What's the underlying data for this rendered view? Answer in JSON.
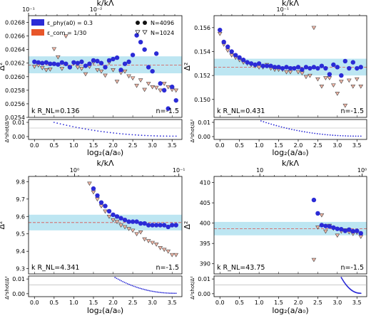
{
  "colors": {
    "phy": "#2b2bd6",
    "com": "#e8562a",
    "band": "#bde6f2",
    "dashed": "#d9534f",
    "shot": "#2b2bd6",
    "n1024_stroke": "#444444",
    "n1024_fill_red": "#f3b7a6"
  },
  "legend": {
    "phy_label": "ε_phy(a0) = 0.3",
    "com_label": "ε_com = 1/30",
    "n4096_label": "N=4096",
    "n1024_label": "N=1024"
  },
  "chart_data": [
    {
      "type": "scatter",
      "top_axis_label": "k/kΛ",
      "top_axis_scale": "log",
      "top_ticks": [
        "10⁻¹",
        "10⁻²"
      ],
      "ylabel": "Δ²",
      "xlabel": "log₂(a/a₀)",
      "xlim": [
        -0.15,
        3.75
      ],
      "ylim": [
        0.0254,
        0.0269
      ],
      "yticks": [
        "0.0254",
        "0.0256",
        "0.0258",
        "0.0260",
        "0.0262",
        "0.0264",
        "0.0266",
        "0.0268"
      ],
      "xticks": [
        "0.0",
        "0.5",
        "1.0",
        "1.5",
        "2.0",
        "2.5",
        "3.0",
        "3.5"
      ],
      "band": [
        0.02605,
        0.0263
      ],
      "mean": 0.02617,
      "annotation_left": "k R_NL=0.136",
      "annotation_right": "n=-1.5",
      "series": [
        {
          "name": "N=4096",
          "x": [
            0.0,
            0.1,
            0.2,
            0.3,
            0.4,
            0.5,
            0.6,
            0.7,
            0.8,
            0.9,
            1.0,
            1.1,
            1.2,
            1.3,
            1.4,
            1.5,
            1.6,
            1.7,
            1.8,
            1.9,
            2.0,
            2.1,
            2.2,
            2.3,
            2.4,
            2.5,
            2.6,
            2.7,
            2.8,
            2.9,
            3.0,
            3.1,
            3.2,
            3.3,
            3.4,
            3.5,
            3.6
          ],
          "y": [
            0.02622,
            0.02621,
            0.0262,
            0.02621,
            0.02619,
            0.02619,
            0.02618,
            0.02621,
            0.02619,
            0.02614,
            0.02621,
            0.0262,
            0.02622,
            0.02616,
            0.02619,
            0.02624,
            0.02623,
            0.0262,
            0.02614,
            0.02624,
            0.02626,
            0.02628,
            0.0261,
            0.02619,
            0.02622,
            0.02632,
            0.02661,
            0.02651,
            0.0264,
            0.02614,
            0.02608,
            0.02634,
            0.0259,
            0.0258,
            0.02553,
            0.02585,
            0.02565
          ]
        },
        {
          "name": "N=1024",
          "x": [
            0.0,
            0.1,
            0.2,
            0.3,
            0.4,
            0.5,
            0.6,
            0.7,
            0.8,
            0.9,
            1.0,
            1.1,
            1.2,
            1.3,
            1.4,
            1.5,
            1.6,
            1.7,
            1.8,
            1.9,
            2.0,
            2.1,
            2.2,
            2.3,
            2.4,
            2.5,
            2.6,
            2.7,
            2.8,
            2.9,
            3.0,
            3.1,
            3.2,
            3.3,
            3.4,
            3.5,
            3.6
          ],
          "y": [
            0.02615,
            0.02617,
            0.02613,
            0.0261,
            0.02611,
            0.02641,
            0.02629,
            0.02612,
            0.0266,
            0.02614,
            0.0262,
            0.02614,
            0.02612,
            0.02604,
            0.02615,
            0.02621,
            0.0261,
            0.02608,
            0.02602,
            0.02621,
            0.0261,
            0.02593,
            0.02606,
            0.02608,
            0.02601,
            0.02598,
            0.02587,
            0.02595,
            0.02581,
            0.0259,
            0.02585,
            0.02584,
            0.0258,
            0.0259,
            0.02585,
            0.02581,
            0.0258
          ]
        }
      ],
      "shot_ylim": [
        -0.002,
        0.012
      ],
      "shot_yticks": [
        "0.00",
        "0.01"
      ],
      "shot": {
        "x_start": 0.5,
        "x_end": 3.6,
        "y_start": 0.01,
        "y_end": 0.0003
      }
    },
    {
      "type": "scatter",
      "top_axis_label": "k/kΛ",
      "top_axis_scale": "log",
      "top_ticks": [
        "10⁻¹"
      ],
      "ylabel": "Δ²",
      "xlabel": "log₂(a/a₀)",
      "xlim": [
        -0.15,
        3.75
      ],
      "ylim": [
        0.1485,
        0.157
      ],
      "yticks": [
        "0.150",
        "0.152",
        "0.154",
        "0.156"
      ],
      "xticks": [
        "0.0",
        "0.5",
        "1.0",
        "1.5",
        "2.0",
        "2.5",
        "3.0",
        "3.5"
      ],
      "band": [
        0.152,
        0.1534
      ],
      "mean": 0.1527,
      "annotation_left": "k R_NL=0.431",
      "annotation_right": "n=-1.5",
      "series": [
        {
          "name": "N=4096",
          "x": [
            0.0,
            0.1,
            0.2,
            0.3,
            0.4,
            0.5,
            0.6,
            0.7,
            0.8,
            0.9,
            1.0,
            1.1,
            1.2,
            1.3,
            1.4,
            1.5,
            1.6,
            1.7,
            1.8,
            1.9,
            2.0,
            2.1,
            2.2,
            2.3,
            2.4,
            2.5,
            2.6,
            2.7,
            2.8,
            2.9,
            3.0,
            3.1,
            3.2,
            3.3,
            3.4,
            3.5,
            3.6
          ],
          "y": [
            0.1558,
            0.1548,
            0.1544,
            0.154,
            0.1537,
            0.1535,
            0.1533,
            0.1531,
            0.153,
            0.1529,
            0.153,
            0.1528,
            0.1528,
            0.1528,
            0.1527,
            0.1527,
            0.1526,
            0.1527,
            0.1526,
            0.1526,
            0.1527,
            0.1525,
            0.1527,
            0.1526,
            0.1527,
            0.1526,
            0.1528,
            0.1526,
            0.1521,
            0.1529,
            0.1527,
            0.152,
            0.1532,
            0.1526,
            0.1531,
            0.1526,
            0.1527
          ]
        },
        {
          "name": "N=1024",
          "x": [
            0.0,
            0.1,
            0.2,
            0.3,
            0.4,
            0.5,
            0.6,
            0.7,
            0.8,
            0.9,
            1.0,
            1.1,
            1.2,
            1.3,
            1.4,
            1.5,
            1.6,
            1.7,
            1.8,
            1.9,
            2.0,
            2.1,
            2.2,
            2.3,
            2.4,
            2.5,
            2.6,
            2.7,
            2.8,
            2.9,
            3.0,
            3.1,
            3.2,
            3.3,
            3.4,
            3.5,
            3.6
          ],
          "y": [
            0.1555,
            0.1546,
            0.1541,
            0.1537,
            0.1535,
            0.1533,
            0.1531,
            0.153,
            0.1529,
            0.1528,
            0.1527,
            0.1527,
            0.1529,
            0.1526,
            0.1525,
            0.1525,
            0.1525,
            0.1523,
            0.1523,
            0.1526,
            0.1523,
            0.1522,
            0.1519,
            0.152,
            0.156,
            0.1517,
            0.1511,
            0.1518,
            0.1518,
            0.1512,
            0.1505,
            0.1515,
            0.1495,
            0.1516,
            0.1511,
            0.1517,
            0.1511
          ]
        }
      ],
      "shot_ylim": [
        -0.002,
        0.012
      ],
      "shot_yticks": [
        "0.00",
        "0.01"
      ],
      "shot": {
        "x_start": 1.05,
        "x_end": 3.6,
        "y_start": 0.011,
        "y_end": 0.0003
      }
    },
    {
      "type": "scatter",
      "top_axis_label": "k/kΛ",
      "top_axis_scale": "log",
      "top_ticks": [
        "10⁰",
        "10⁻¹"
      ],
      "ylabel": "Δ²",
      "xlabel": "log₂(a/a₀)",
      "xlim": [
        -0.15,
        3.75
      ],
      "ylim": [
        9.27,
        9.83
      ],
      "yticks": [
        "9.3",
        "9.4",
        "9.5",
        "9.6",
        "9.7",
        "9.8"
      ],
      "xticks": [
        "0.0",
        "0.5",
        "1.0",
        "1.5",
        "2.0",
        "2.5",
        "3.0",
        "3.5"
      ],
      "band": [
        9.52,
        9.61
      ],
      "mean": 9.565,
      "annotation_left": "k R_NL=4.341",
      "annotation_right": "n=-1.5",
      "series": [
        {
          "name": "N=4096",
          "x": [
            1.5,
            1.6,
            1.7,
            1.8,
            1.9,
            2.0,
            2.1,
            2.2,
            2.3,
            2.4,
            2.5,
            2.6,
            2.7,
            2.8,
            2.9,
            3.0,
            3.1,
            3.2,
            3.3,
            3.4,
            3.5,
            3.6
          ],
          "y": [
            9.76,
            9.72,
            9.68,
            9.66,
            9.63,
            9.61,
            9.6,
            9.59,
            9.58,
            9.57,
            9.57,
            9.57,
            9.56,
            9.56,
            9.55,
            9.55,
            9.55,
            9.55,
            9.55,
            9.54,
            9.55,
            9.55
          ]
        },
        {
          "name": "N=1024",
          "x": [
            1.4,
            1.5,
            1.6,
            1.7,
            1.8,
            1.9,
            2.0,
            2.1,
            2.2,
            2.3,
            2.4,
            2.5,
            2.6,
            2.7,
            2.8,
            2.9,
            3.0,
            3.1,
            3.2,
            3.3,
            3.4,
            3.5,
            3.6
          ],
          "y": [
            9.79,
            9.74,
            9.7,
            9.66,
            9.63,
            9.6,
            9.58,
            9.57,
            9.55,
            9.54,
            9.53,
            9.52,
            9.5,
            9.51,
            9.47,
            9.46,
            9.45,
            9.44,
            9.42,
            9.41,
            9.4,
            9.38,
            9.38
          ]
        }
      ],
      "shot_ylim": [
        -0.002,
        0.012
      ],
      "shot_yticks": [
        "0.00",
        "0.01"
      ],
      "shot": {
        "x_start": 2.05,
        "x_end": 3.6,
        "y_start": 0.011,
        "y_end": 0.0003
      }
    },
    {
      "type": "scatter",
      "top_axis_label": "k/kΛ",
      "top_axis_scale": "log",
      "top_ticks": [
        "10",
        "10⁰"
      ],
      "ylabel": "Δ²",
      "xlabel": "log₂(a/a₀)",
      "xlim": [
        -0.15,
        3.75
      ],
      "ylim": [
        387.5,
        411.5
      ],
      "yticks": [
        "390",
        "395",
        "400",
        "405",
        "410"
      ],
      "xticks": [
        "0.0",
        "0.5",
        "1.0",
        "1.5",
        "2.0",
        "2.5",
        "3.0",
        "3.5"
      ],
      "band": [
        397.0,
        400.3
      ],
      "mean": 398.6,
      "annotation_left": "k R_NL=43.75",
      "annotation_right": "n=-1.5",
      "series": [
        {
          "name": "N=4096",
          "x": [
            2.4,
            2.5,
            2.6,
            2.7,
            2.8,
            2.9,
            3.0,
            3.1,
            3.2,
            3.3,
            3.4,
            3.5,
            3.6
          ],
          "y": [
            405.7,
            402.4,
            399.5,
            399.3,
            399.2,
            398.9,
            398.6,
            398.5,
            398.1,
            398.4,
            398.0,
            398.1,
            397.5
          ]
        },
        {
          "name": "N=1024",
          "x": [
            2.4,
            2.5,
            2.6,
            2.7,
            2.8,
            2.9,
            3.0,
            3.1,
            3.2,
            3.3,
            3.4,
            3.5,
            3.6
          ],
          "y": [
            391.0,
            399.0,
            402.0,
            398.0,
            399.4,
            398.7,
            397.0,
            398.0,
            398.3,
            397.8,
            397.4,
            397.7,
            396.7
          ]
        }
      ],
      "shot_ylim": [
        -0.002,
        0.012
      ],
      "shot_yticks": [
        "0.00",
        "0.01"
      ],
      "shot": {
        "x_start": 3.1,
        "x_end": 3.6,
        "y_start": 0.011,
        "y_end": 0.0003
      }
    }
  ]
}
